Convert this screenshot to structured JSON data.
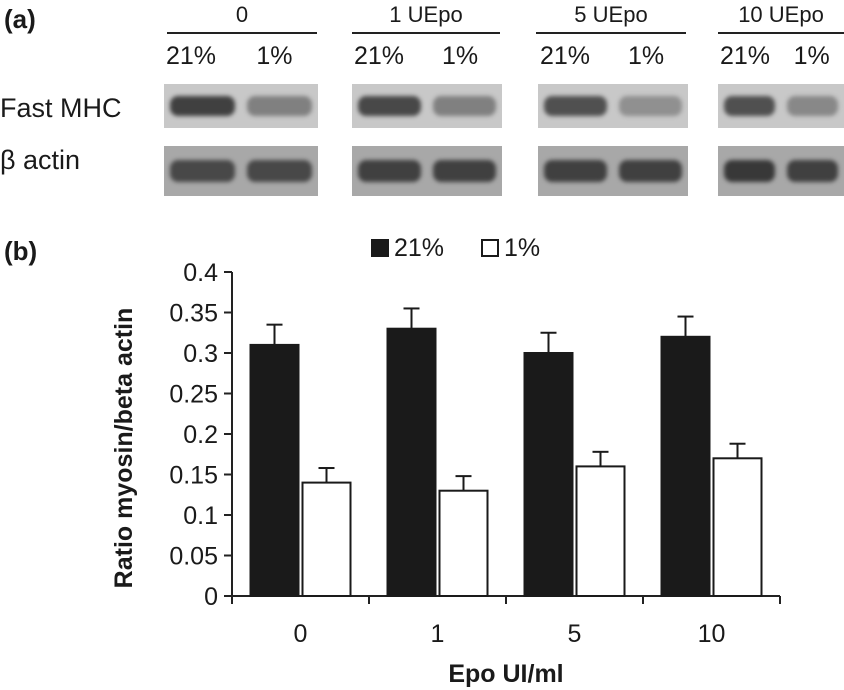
{
  "panel_a": {
    "label": "(a)",
    "row_labels": [
      "Fast MHC",
      "β actin"
    ],
    "groups": [
      {
        "header": "0",
        "lanes": [
          "21%",
          "1%"
        ],
        "mhc_intensity": [
          0.85,
          0.45
        ],
        "actin_intensity": [
          0.8,
          0.8
        ]
      },
      {
        "header": "1 UEpo",
        "lanes": [
          "21%",
          "1%"
        ],
        "mhc_intensity": [
          0.8,
          0.45
        ],
        "actin_intensity": [
          0.85,
          0.85
        ]
      },
      {
        "header": "5 UEpo",
        "lanes": [
          "21%",
          "1%"
        ],
        "mhc_intensity": [
          0.75,
          0.35
        ],
        "actin_intensity": [
          0.85,
          0.85
        ]
      },
      {
        "header": "10 UEpo",
        "lanes": [
          "21%",
          "1%"
        ],
        "mhc_intensity": [
          0.75,
          0.4
        ],
        "actin_intensity": [
          0.9,
          0.85
        ]
      }
    ]
  },
  "panel_b": {
    "label": "(b)"
  },
  "chart_data": {
    "type": "bar",
    "categories": [
      "0",
      "1",
      "5",
      "10"
    ],
    "series": [
      {
        "name": "21%",
        "values": [
          0.31,
          0.33,
          0.3,
          0.32
        ],
        "errors": [
          0.025,
          0.025,
          0.025,
          0.025
        ],
        "color": "#1a1a1a"
      },
      {
        "name": "1%",
        "values": [
          0.14,
          0.13,
          0.16,
          0.17
        ],
        "errors": [
          0.018,
          0.018,
          0.018,
          0.018
        ],
        "color": "#ffffff"
      }
    ],
    "title": "",
    "xlabel": "Epo UI/ml",
    "ylabel": "Ratio myosin/beta actin",
    "ylim": [
      0,
      0.4
    ],
    "yticks": [
      "0",
      "0.05",
      "0.1",
      "0.15",
      "0.2",
      "0.25",
      "0.3",
      "0.35",
      "0.4"
    ],
    "legend_position": "top-center",
    "grid": false
  }
}
